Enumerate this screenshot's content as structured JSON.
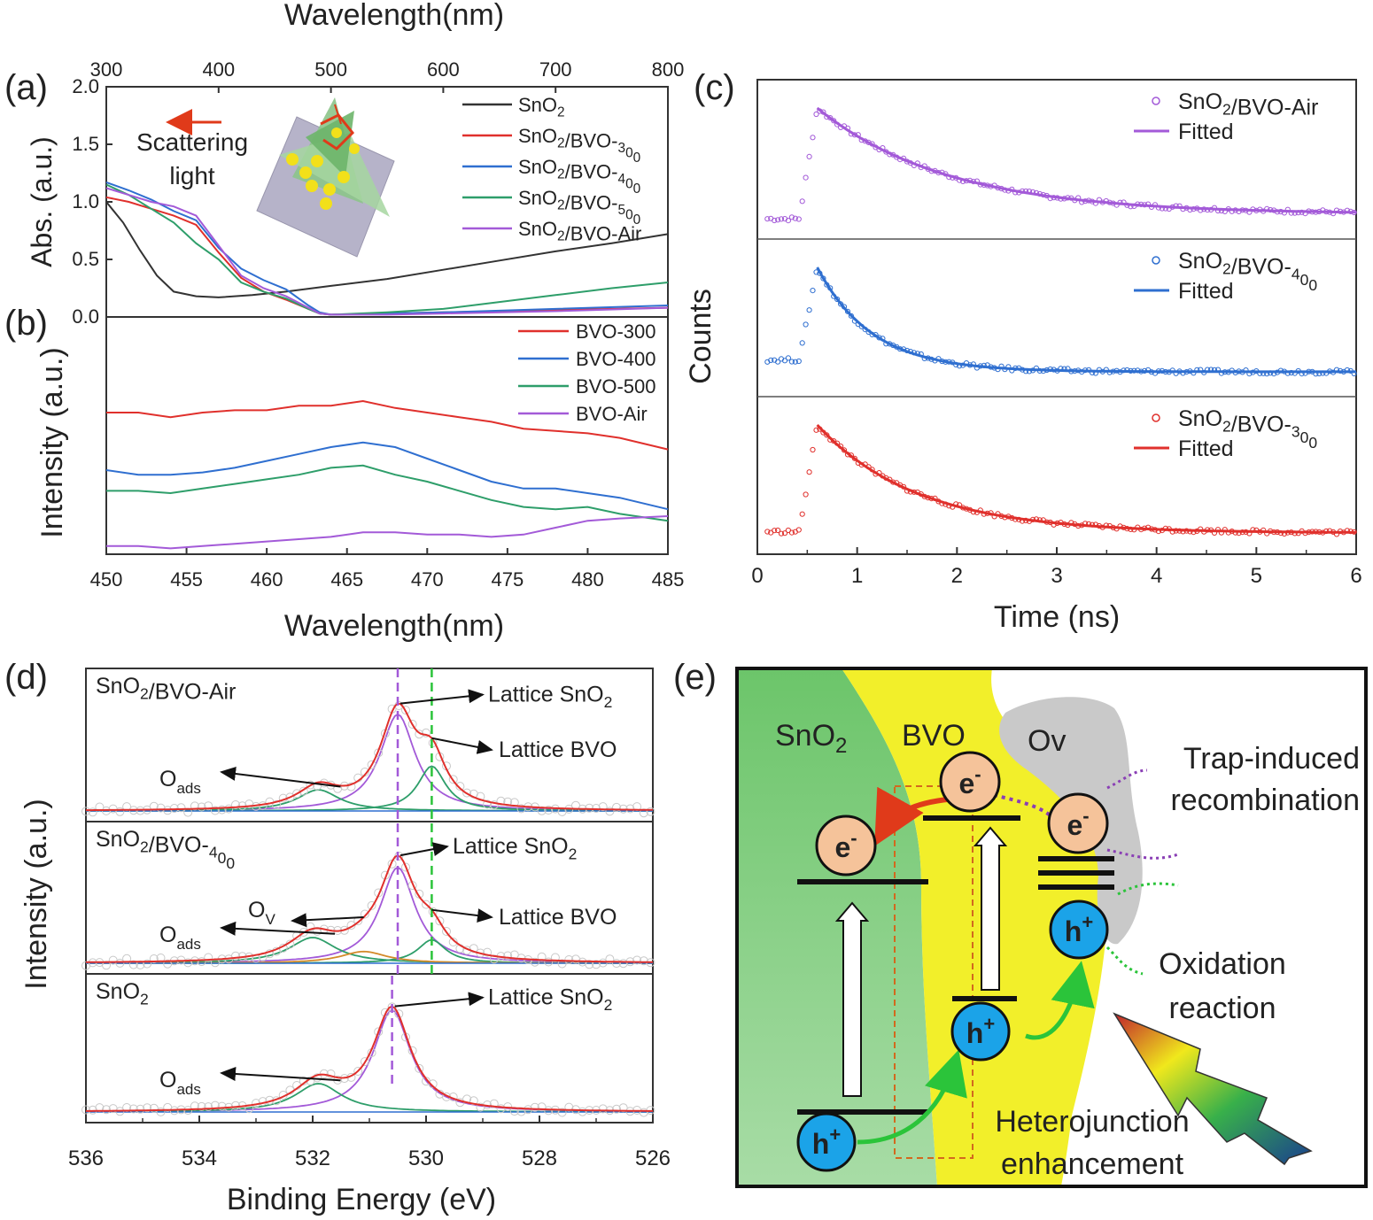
{
  "panel_labels": {
    "a": "(a)",
    "b": "(b)",
    "c": "(c)",
    "d": "(d)",
    "e": "(e)"
  },
  "chart_data": [
    {
      "id": "a",
      "type": "line",
      "xlabel": "Wavelength(nm)",
      "ylabel": "Abs. (a.u.)",
      "xlim": [
        300,
        800
      ],
      "ylim": [
        0,
        2.0
      ],
      "xticks": [
        "300",
        "400",
        "500",
        "600",
        "700",
        "800"
      ],
      "yticks": [
        "0.0",
        "0.5",
        "1.0",
        "1.5",
        "2.0"
      ],
      "annotation": [
        "Scattering",
        "light"
      ],
      "series": [
        {
          "name": "SnO2",
          "color": "#333333",
          "x": [
            300,
            315,
            330,
            345,
            360,
            380,
            400,
            430,
            460,
            500,
            550,
            600,
            650,
            700,
            750,
            800
          ],
          "y": [
            1.0,
            0.82,
            0.58,
            0.36,
            0.22,
            0.18,
            0.17,
            0.19,
            0.22,
            0.27,
            0.33,
            0.41,
            0.49,
            0.57,
            0.64,
            0.72
          ]
        },
        {
          "name": "SnO2/BVO-300",
          "color": "#e0302c",
          "x": [
            300,
            320,
            340,
            360,
            380,
            400,
            420,
            440,
            460,
            480,
            490,
            500,
            550,
            600,
            700,
            800
          ],
          "y": [
            1.04,
            1.0,
            0.94,
            0.88,
            0.8,
            0.56,
            0.34,
            0.22,
            0.15,
            0.07,
            0.03,
            0.02,
            0.03,
            0.04,
            0.06,
            0.08
          ]
        },
        {
          "name": "SnO2/BVO-400",
          "color": "#2f6fd0",
          "x": [
            300,
            320,
            340,
            360,
            380,
            400,
            420,
            440,
            460,
            480,
            490,
            500,
            550,
            600,
            700,
            800
          ],
          "y": [
            1.17,
            1.1,
            1.02,
            0.92,
            0.84,
            0.6,
            0.42,
            0.32,
            0.24,
            0.1,
            0.04,
            0.02,
            0.03,
            0.04,
            0.07,
            0.1
          ]
        },
        {
          "name": "SnO2/BVO-500",
          "color": "#2e9e6a",
          "x": [
            300,
            320,
            340,
            360,
            380,
            400,
            420,
            440,
            460,
            480,
            490,
            500,
            550,
            600,
            650,
            700,
            750,
            800
          ],
          "y": [
            1.15,
            1.06,
            0.94,
            0.82,
            0.64,
            0.5,
            0.3,
            0.22,
            0.16,
            0.07,
            0.03,
            0.02,
            0.04,
            0.07,
            0.13,
            0.19,
            0.25,
            0.3
          ]
        },
        {
          "name": "SnO2/BVO-Air",
          "color": "#a35ad8",
          "x": [
            300,
            320,
            340,
            360,
            380,
            400,
            420,
            440,
            460,
            480,
            490,
            500,
            550,
            600,
            700,
            800
          ],
          "y": [
            1.12,
            1.06,
            1.0,
            0.96,
            0.88,
            0.62,
            0.36,
            0.25,
            0.18,
            0.08,
            0.03,
            0.02,
            0.02,
            0.03,
            0.05,
            0.08
          ]
        }
      ]
    },
    {
      "id": "b",
      "type": "line",
      "xlabel": "Wavelength(nm)",
      "ylabel": "Intensity (a.u.)",
      "xlim": [
        450,
        485
      ],
      "ylim": [
        0,
        1.0
      ],
      "xticks": [
        "450",
        "455",
        "460",
        "465",
        "470",
        "475",
        "480",
        "485"
      ],
      "series": [
        {
          "name": "BVO-300",
          "color": "#e0302c",
          "x": [
            450,
            452,
            454,
            456,
            458,
            460,
            462,
            464,
            466,
            468,
            470,
            472,
            474,
            476,
            478,
            480,
            482,
            485
          ],
          "y": [
            0.6,
            0.6,
            0.58,
            0.6,
            0.61,
            0.61,
            0.63,
            0.63,
            0.65,
            0.62,
            0.6,
            0.58,
            0.56,
            0.53,
            0.52,
            0.51,
            0.49,
            0.44
          ]
        },
        {
          "name": "BVO-400",
          "color": "#2f6fd0",
          "x": [
            450,
            452,
            454,
            456,
            458,
            460,
            462,
            464,
            466,
            468,
            470,
            472,
            474,
            476,
            478,
            480,
            482,
            485
          ],
          "y": [
            0.35,
            0.33,
            0.33,
            0.34,
            0.36,
            0.39,
            0.42,
            0.45,
            0.47,
            0.45,
            0.4,
            0.35,
            0.3,
            0.27,
            0.27,
            0.25,
            0.23,
            0.18
          ]
        },
        {
          "name": "BVO-500",
          "color": "#2e9e6a",
          "x": [
            450,
            452,
            454,
            456,
            458,
            460,
            462,
            464,
            466,
            468,
            470,
            472,
            474,
            476,
            478,
            480,
            482,
            485
          ],
          "y": [
            0.26,
            0.26,
            0.25,
            0.27,
            0.29,
            0.31,
            0.33,
            0.36,
            0.37,
            0.33,
            0.3,
            0.26,
            0.22,
            0.19,
            0.18,
            0.19,
            0.16,
            0.13
          ]
        },
        {
          "name": "BVO-Air",
          "color": "#a35ad8",
          "x": [
            450,
            452,
            454,
            456,
            458,
            460,
            462,
            464,
            466,
            468,
            470,
            472,
            474,
            476,
            478,
            480,
            482,
            485
          ],
          "y": [
            0.02,
            0.02,
            0.01,
            0.02,
            0.03,
            0.04,
            0.05,
            0.06,
            0.08,
            0.08,
            0.07,
            0.07,
            0.06,
            0.07,
            0.1,
            0.13,
            0.14,
            0.15
          ]
        }
      ]
    },
    {
      "id": "c",
      "type": "scatter",
      "xlabel": "Time (ns)",
      "ylabel": "Counts",
      "xlim": [
        0,
        6
      ],
      "xticks": [
        "0",
        "1",
        "2",
        "3",
        "4",
        "5",
        "6"
      ],
      "series": [
        {
          "name": "SnO2/BVO-Air",
          "fit_name": "Fitted",
          "color": "#a35ad8",
          "baseline": 0.08,
          "peak_t": 0.6,
          "tau": 1.3,
          "tail": 0.12
        },
        {
          "name": "SnO2/BVO-400",
          "fit_name": "Fitted",
          "color": "#2f6fd0",
          "baseline": 0.22,
          "peak_t": 0.6,
          "tau": 0.55,
          "tail": 0.12
        },
        {
          "name": "SnO2/BVO-300",
          "fit_name": "Fitted",
          "color": "#e0302c",
          "baseline": 0.1,
          "peak_t": 0.6,
          "tau": 1.0,
          "tail": 0.09
        }
      ]
    },
    {
      "id": "d",
      "type": "line",
      "xlabel": "Binding Energy (eV)",
      "ylabel": "Intensity (a.u.)",
      "xlim": [
        536,
        526
      ],
      "xticks": [
        "536",
        "534",
        "532",
        "530",
        "528",
        "526"
      ],
      "subpanels": [
        {
          "title": "SnO2/BVO-Air",
          "peaks": [
            {
              "center": 530.5,
              "height": 0.82,
              "width": 0.75,
              "color": "#a35ad8"
            },
            {
              "center": 529.9,
              "height": 0.38,
              "width": 0.6,
              "color": "#2e9e6a"
            },
            {
              "center": 531.9,
              "height": 0.18,
              "width": 0.9,
              "color": "#2e9e6a"
            }
          ],
          "annotations": [
            {
              "text": "Lattice SnO2"
            },
            {
              "text": "Lattice BVO"
            },
            {
              "text": "O",
              "sub": "ads"
            }
          ],
          "guides": [
            530.5,
            529.9
          ]
        },
        {
          "title": "SnO2/BVO-400",
          "peaks": [
            {
              "center": 530.5,
              "height": 0.82,
              "width": 0.75,
              "color": "#a35ad8"
            },
            {
              "center": 529.9,
              "height": 0.2,
              "width": 0.6,
              "color": "#2e9e6a"
            },
            {
              "center": 532.0,
              "height": 0.22,
              "width": 1.0,
              "color": "#2e9e6a"
            },
            {
              "center": 531.1,
              "height": 0.1,
              "width": 1.0,
              "color": "#d48a2a"
            }
          ],
          "annotations": [
            {
              "text": "Lattice SnO2"
            },
            {
              "text": "Lattice BVO"
            },
            {
              "text": "O",
              "sub": "V"
            },
            {
              "text": "O",
              "sub": "ads"
            }
          ],
          "guides": [
            530.5,
            529.9
          ]
        },
        {
          "title": "SnO2",
          "peaks": [
            {
              "center": 530.6,
              "height": 0.9,
              "width": 0.8,
              "color": "#a35ad8"
            },
            {
              "center": 531.9,
              "height": 0.25,
              "width": 1.0,
              "color": "#2e9e6a"
            }
          ],
          "annotations": [
            {
              "text": "Lattice SnO2"
            },
            {
              "text": "O",
              "sub": "ads"
            }
          ],
          "guides": [
            530.6
          ]
        }
      ]
    }
  ],
  "schematic_e": {
    "labels": {
      "sno2": "SnO",
      "sno2_sub": "2",
      "bvo": "BVO",
      "ov": "Ov",
      "electron": "e",
      "electron_sup": "-",
      "hole": "h",
      "hole_sup": "+"
    },
    "trap_text": [
      "Trap-induced",
      "recombination"
    ],
    "oxidation_text": [
      "Oxidation",
      "reaction"
    ],
    "hetero_text": [
      "Heterojunction",
      "enhancement"
    ],
    "colors": {
      "sno2": "#7fcc7f",
      "bvo": "#f2ef2a",
      "ov": "#c7c7c7",
      "electron": "#f5c39a",
      "hole": "#1ba3e8",
      "red_arrow": "#e03a1a",
      "green_arrow": "#2bc43a",
      "trap": "#8a3fb5",
      "oxidation": "#2bc43a",
      "hetero": "#e07b2a"
    }
  }
}
